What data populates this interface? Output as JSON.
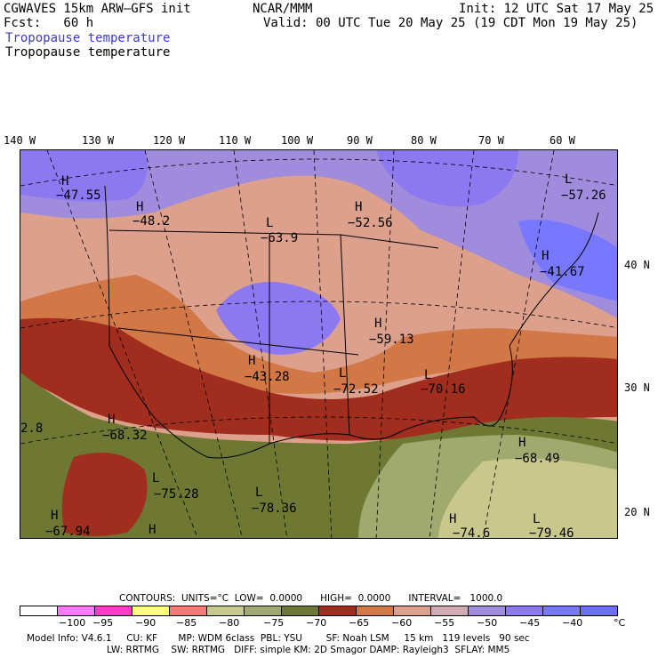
{
  "header": {
    "model": "CGWAVES 15km ARW–GFS init",
    "fcst": "Fcst:   60 h",
    "center": "NCAR/MMM",
    "init": "Init: 12 UTC Sat 17 May 25",
    "valid": "Valid: 00 UTC Tue 20 May 25 (19 CDT Mon 19 May 25)",
    "field_line1": "Tropopause temperature",
    "field_line2": "Tropopause temperature"
  },
  "longitude_labels": [
    "140 W",
    "130 W",
    "120 W",
    "110 W",
    "100 W",
    "90 W",
    "80 W",
    "70 W",
    "60 W"
  ],
  "latitude_labels": [
    "40 N",
    "30 N",
    "20 N"
  ],
  "map_labels": [
    {
      "text": "H",
      "value": "−47.55"
    },
    {
      "text": "H",
      "value": "−48.2"
    },
    {
      "text": "L",
      "value": "−63.9"
    },
    {
      "text": "H",
      "value": "−52.56"
    },
    {
      "text": "L",
      "value": "−57.26"
    },
    {
      "text": "H",
      "value": "−41.67"
    },
    {
      "text": "H",
      "value": "−59.13"
    },
    {
      "text": "H",
      "value": "−43.28"
    },
    {
      "text": "L",
      "value": "−72.52"
    },
    {
      "text": "L",
      "value": "−70.16"
    },
    {
      "text": "H",
      "value": "−68.32"
    },
    {
      "text": "H",
      "value": "−68.49"
    },
    {
      "text": "L",
      "value": "−75.28"
    },
    {
      "text": "L",
      "value": "−78.36"
    },
    {
      "text": "H",
      "value": "−67.94"
    },
    {
      "text": "H",
      "value": "−74.6"
    },
    {
      "text": "L",
      "value": "−79.46"
    },
    {
      "text": "",
      "value": "2.8"
    },
    {
      "text": "H",
      "value": ""
    }
  ],
  "contours": {
    "text": "CONTOURS:  UNITS=°C  LOW=  0.0000      HIGH=  0.0000      INTERVAL=   1000.0"
  },
  "colorbar": {
    "colors": [
      "#ffffff",
      "#ff78ff",
      "#ff3cc8",
      "#ffff78",
      "#ff7878",
      "#c8c88c",
      "#a0aa6e",
      "#6e7832",
      "#a02d1e",
      "#d27846",
      "#dca08c",
      "#d2aab4",
      "#a08cdc",
      "#8c78f0",
      "#7878ff",
      "#6e6eff"
    ],
    "ticks": [
      "−100",
      "−95",
      "−90",
      "−85",
      "−80",
      "−75",
      "−70",
      "−65",
      "−60",
      "−55",
      "−50",
      "−45",
      "−40"
    ],
    "unit": "°C"
  },
  "footer": {
    "line1": "Model Info: V4.6.1     CU: KF       MP: WDM 6class  PBL: YSU        SF: Noah LSM     15 km   119 levels   90 sec",
    "line2": "LW: RRTMG    SW: RRTMG   DIFF: simple KM: 2D Smagor DAMP: Rayleigh3  SFLAY: MM5"
  }
}
